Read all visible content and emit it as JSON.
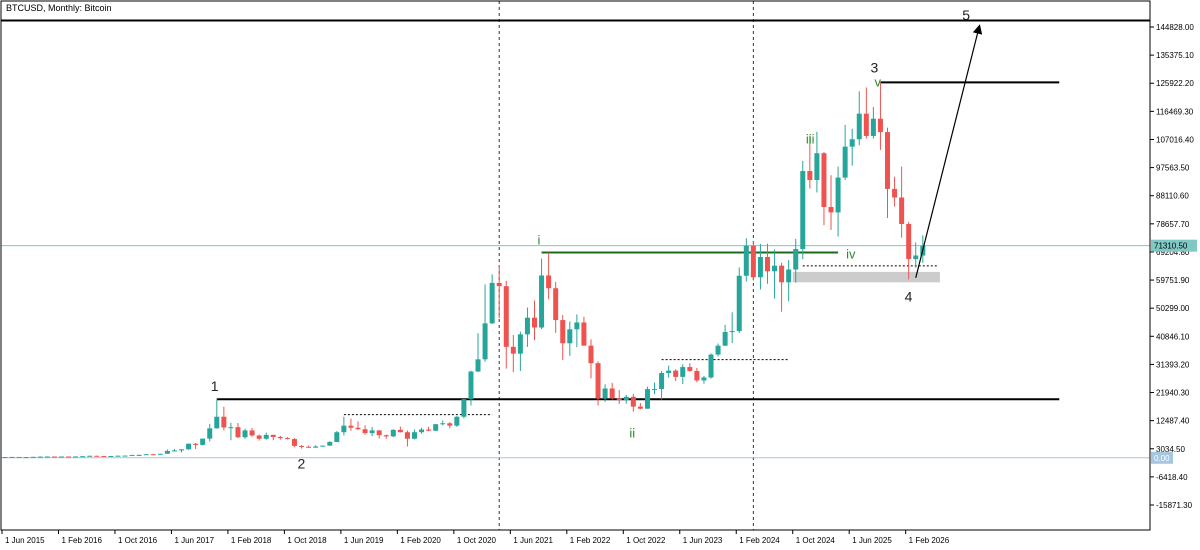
{
  "chart_data": {
    "type": "candlestick",
    "title": "BTCUSD, Monthly: Bitcoin",
    "colors": {
      "up": "#26a69a",
      "down": "#ef5350",
      "current_price_line": "#7fc8c3",
      "zero_line": "#a7c7e0",
      "wave_minor": "#2e8b2e",
      "support_box": "#cccccc"
    },
    "x_ticks": [
      "1 Jun 2015",
      "1 Feb 2016",
      "1 Oct 2016",
      "1 Jun 2017",
      "1 Feb 2018",
      "1 Oct 2018",
      "1 Jun 2019",
      "1 Feb 2020",
      "1 Oct 2020",
      "1 Jun 2021",
      "1 Feb 2022",
      "1 Oct 2022",
      "1 Jun 2023",
      "1 Feb 2024",
      "1 Oct 2024",
      "1 Jun 2025",
      "1 Feb 2026"
    ],
    "y_ticks": [
      "144828.00",
      "135375.10",
      "125922.20",
      "116469.30",
      "107016.40",
      "97563.50",
      "88110.60",
      "78657.70",
      "69204.80",
      "59751.90",
      "50299.00",
      "40846.10",
      "31393.20",
      "21940.30",
      "12487.40",
      "3034.50",
      "-6418.40",
      "-15871.30"
    ],
    "y_range": [
      -18000,
      150000
    ],
    "current_price_label": "71310.50",
    "current_price": 71310.5,
    "zero_label": "0.00",
    "candles": [
      {
        "date": "2015-06",
        "o": 230,
        "h": 265,
        "l": 220,
        "c": 264
      },
      {
        "date": "2015-07",
        "o": 264,
        "h": 315,
        "l": 255,
        "c": 285
      },
      {
        "date": "2015-08",
        "o": 285,
        "h": 290,
        "l": 200,
        "c": 230
      },
      {
        "date": "2015-09",
        "o": 230,
        "h": 245,
        "l": 225,
        "c": 236
      },
      {
        "date": "2015-10",
        "o": 236,
        "h": 330,
        "l": 235,
        "c": 315
      },
      {
        "date": "2015-11",
        "o": 315,
        "h": 500,
        "l": 310,
        "c": 377
      },
      {
        "date": "2015-12",
        "o": 377,
        "h": 470,
        "l": 350,
        "c": 430
      },
      {
        "date": "2016-01",
        "o": 430,
        "h": 465,
        "l": 350,
        "c": 370
      },
      {
        "date": "2016-02",
        "o": 370,
        "h": 440,
        "l": 365,
        "c": 437
      },
      {
        "date": "2016-03",
        "o": 437,
        "h": 440,
        "l": 400,
        "c": 416
      },
      {
        "date": "2016-04",
        "o": 416,
        "h": 470,
        "l": 410,
        "c": 448
      },
      {
        "date": "2016-05",
        "o": 448,
        "h": 550,
        "l": 440,
        "c": 531
      },
      {
        "date": "2016-06",
        "o": 531,
        "h": 780,
        "l": 525,
        "c": 673
      },
      {
        "date": "2016-07",
        "o": 673,
        "h": 700,
        "l": 610,
        "c": 624
      },
      {
        "date": "2016-08",
        "o": 624,
        "h": 620,
        "l": 480,
        "c": 573
      },
      {
        "date": "2016-09",
        "o": 573,
        "h": 620,
        "l": 570,
        "c": 609
      },
      {
        "date": "2016-10",
        "o": 609,
        "h": 720,
        "l": 605,
        "c": 699
      },
      {
        "date": "2016-11",
        "o": 699,
        "h": 760,
        "l": 690,
        "c": 742
      },
      {
        "date": "2016-12",
        "o": 742,
        "h": 980,
        "l": 740,
        "c": 960
      },
      {
        "date": "2017-01",
        "o": 960,
        "h": 1160,
        "l": 750,
        "c": 970
      },
      {
        "date": "2017-02",
        "o": 970,
        "h": 1200,
        "l": 930,
        "c": 1190
      },
      {
        "date": "2017-03",
        "o": 1190,
        "h": 1300,
        "l": 890,
        "c": 1080
      },
      {
        "date": "2017-04",
        "o": 1080,
        "h": 1360,
        "l": 1070,
        "c": 1350
      },
      {
        "date": "2017-05",
        "o": 1350,
        "h": 2790,
        "l": 1340,
        "c": 2300
      },
      {
        "date": "2017-06",
        "o": 2300,
        "h": 3000,
        "l": 2100,
        "c": 2500
      },
      {
        "date": "2017-07",
        "o": 2500,
        "h": 2900,
        "l": 1800,
        "c": 2860
      },
      {
        "date": "2017-08",
        "o": 2860,
        "h": 4800,
        "l": 2700,
        "c": 4730
      },
      {
        "date": "2017-09",
        "o": 4730,
        "h": 5000,
        "l": 2950,
        "c": 4340
      },
      {
        "date": "2017-10",
        "o": 4340,
        "h": 6450,
        "l": 4120,
        "c": 6450
      },
      {
        "date": "2017-11",
        "o": 6450,
        "h": 11400,
        "l": 5500,
        "c": 9900
      },
      {
        "date": "2017-12",
        "o": 9900,
        "h": 19700,
        "l": 9800,
        "c": 13800
      },
      {
        "date": "2018-01",
        "o": 13800,
        "h": 17200,
        "l": 9200,
        "c": 10200
      },
      {
        "date": "2018-02",
        "o": 10200,
        "h": 11800,
        "l": 5900,
        "c": 10300
      },
      {
        "date": "2018-03",
        "o": 10300,
        "h": 11700,
        "l": 6600,
        "c": 6900
      },
      {
        "date": "2018-04",
        "o": 6900,
        "h": 9800,
        "l": 6400,
        "c": 9200
      },
      {
        "date": "2018-05",
        "o": 9200,
        "h": 10000,
        "l": 7100,
        "c": 7500
      },
      {
        "date": "2018-06",
        "o": 7500,
        "h": 7800,
        "l": 5800,
        "c": 6400
      },
      {
        "date": "2018-07",
        "o": 6400,
        "h": 8500,
        "l": 6100,
        "c": 7700
      },
      {
        "date": "2018-08",
        "o": 7700,
        "h": 7800,
        "l": 5900,
        "c": 7000
      },
      {
        "date": "2018-09",
        "o": 7000,
        "h": 7400,
        "l": 6100,
        "c": 6600
      },
      {
        "date": "2018-10",
        "o": 6600,
        "h": 7000,
        "l": 6200,
        "c": 6300
      },
      {
        "date": "2018-11",
        "o": 6300,
        "h": 6600,
        "l": 3600,
        "c": 4000
      },
      {
        "date": "2018-12",
        "o": 4000,
        "h": 4300,
        "l": 3100,
        "c": 3700
      },
      {
        "date": "2019-01",
        "o": 3700,
        "h": 4100,
        "l": 3400,
        "c": 3400
      },
      {
        "date": "2019-02",
        "o": 3400,
        "h": 4200,
        "l": 3400,
        "c": 3800
      },
      {
        "date": "2019-03",
        "o": 3800,
        "h": 4100,
        "l": 3700,
        "c": 4100
      },
      {
        "date": "2019-04",
        "o": 4100,
        "h": 5600,
        "l": 4000,
        "c": 5300
      },
      {
        "date": "2019-05",
        "o": 5300,
        "h": 9000,
        "l": 5300,
        "c": 8600
      },
      {
        "date": "2019-06",
        "o": 8600,
        "h": 13800,
        "l": 7500,
        "c": 10800
      },
      {
        "date": "2019-07",
        "o": 10800,
        "h": 13200,
        "l": 9100,
        "c": 10100
      },
      {
        "date": "2019-08",
        "o": 10100,
        "h": 12300,
        "l": 9400,
        "c": 9600
      },
      {
        "date": "2019-09",
        "o": 9600,
        "h": 10900,
        "l": 7700,
        "c": 8300
      },
      {
        "date": "2019-10",
        "o": 8300,
        "h": 10400,
        "l": 7300,
        "c": 9200
      },
      {
        "date": "2019-11",
        "o": 9200,
        "h": 9300,
        "l": 6500,
        "c": 7600
      },
      {
        "date": "2019-12",
        "o": 7600,
        "h": 7800,
        "l": 6400,
        "c": 7200
      },
      {
        "date": "2020-01",
        "o": 7200,
        "h": 9600,
        "l": 6900,
        "c": 9400
      },
      {
        "date": "2020-02",
        "o": 9400,
        "h": 10500,
        "l": 8500,
        "c": 8600
      },
      {
        "date": "2020-03",
        "o": 8600,
        "h": 9200,
        "l": 3800,
        "c": 6400
      },
      {
        "date": "2020-04",
        "o": 6400,
        "h": 9500,
        "l": 6200,
        "c": 8600
      },
      {
        "date": "2020-05",
        "o": 8600,
        "h": 10100,
        "l": 8100,
        "c": 9500
      },
      {
        "date": "2020-06",
        "o": 9500,
        "h": 10400,
        "l": 8900,
        "c": 9100
      },
      {
        "date": "2020-07",
        "o": 9100,
        "h": 11400,
        "l": 9000,
        "c": 11300
      },
      {
        "date": "2020-08",
        "o": 11300,
        "h": 12500,
        "l": 10900,
        "c": 11600
      },
      {
        "date": "2020-09",
        "o": 11600,
        "h": 12000,
        "l": 9900,
        "c": 10800
      },
      {
        "date": "2020-10",
        "o": 10800,
        "h": 14000,
        "l": 10400,
        "c": 13800
      },
      {
        "date": "2020-11",
        "o": 13800,
        "h": 19800,
        "l": 13200,
        "c": 19700
      },
      {
        "date": "2020-12",
        "o": 19700,
        "h": 29300,
        "l": 17600,
        "c": 29000
      },
      {
        "date": "2021-01",
        "o": 29000,
        "h": 41900,
        "l": 28800,
        "c": 33100
      },
      {
        "date": "2021-02",
        "o": 33100,
        "h": 58300,
        "l": 32300,
        "c": 45200
      },
      {
        "date": "2021-03",
        "o": 45200,
        "h": 61700,
        "l": 45000,
        "c": 58800
      },
      {
        "date": "2021-04",
        "o": 58800,
        "h": 64800,
        "l": 47000,
        "c": 57700
      },
      {
        "date": "2021-05",
        "o": 57700,
        "h": 59500,
        "l": 30000,
        "c": 37300
      },
      {
        "date": "2021-06",
        "o": 37300,
        "h": 41300,
        "l": 28800,
        "c": 35000
      },
      {
        "date": "2021-07",
        "o": 35000,
        "h": 42400,
        "l": 29200,
        "c": 41500
      },
      {
        "date": "2021-08",
        "o": 41500,
        "h": 50500,
        "l": 37300,
        "c": 47100
      },
      {
        "date": "2021-09",
        "o": 47100,
        "h": 52900,
        "l": 39600,
        "c": 43800
      },
      {
        "date": "2021-10",
        "o": 43800,
        "h": 67000,
        "l": 43300,
        "c": 61300
      },
      {
        "date": "2021-11",
        "o": 61300,
        "h": 69000,
        "l": 53300,
        "c": 57000
      },
      {
        "date": "2021-12",
        "o": 57000,
        "h": 59100,
        "l": 42000,
        "c": 46300
      },
      {
        "date": "2022-01",
        "o": 46300,
        "h": 48000,
        "l": 32900,
        "c": 38500
      },
      {
        "date": "2022-02",
        "o": 38500,
        "h": 45800,
        "l": 34300,
        "c": 43200
      },
      {
        "date": "2022-03",
        "o": 43200,
        "h": 48200,
        "l": 37200,
        "c": 45500
      },
      {
        "date": "2022-04",
        "o": 45500,
        "h": 47400,
        "l": 37700,
        "c": 37700
      },
      {
        "date": "2022-05",
        "o": 37700,
        "h": 39800,
        "l": 26700,
        "c": 31800
      },
      {
        "date": "2022-06",
        "o": 31800,
        "h": 32400,
        "l": 17600,
        "c": 19900
      },
      {
        "date": "2022-07",
        "o": 19900,
        "h": 24700,
        "l": 18800,
        "c": 23300
      },
      {
        "date": "2022-08",
        "o": 23300,
        "h": 25200,
        "l": 19600,
        "c": 20000
      },
      {
        "date": "2022-09",
        "o": 20000,
        "h": 22800,
        "l": 18100,
        "c": 19400
      },
      {
        "date": "2022-10",
        "o": 19400,
        "h": 21100,
        "l": 18200,
        "c": 20500
      },
      {
        "date": "2022-11",
        "o": 20500,
        "h": 21500,
        "l": 15500,
        "c": 17200
      },
      {
        "date": "2022-12",
        "o": 17200,
        "h": 18400,
        "l": 16300,
        "c": 16500
      },
      {
        "date": "2023-01",
        "o": 16500,
        "h": 23900,
        "l": 16500,
        "c": 23100
      },
      {
        "date": "2023-02",
        "o": 23100,
        "h": 25300,
        "l": 21400,
        "c": 23100
      },
      {
        "date": "2023-03",
        "o": 23100,
        "h": 29200,
        "l": 19600,
        "c": 28500
      },
      {
        "date": "2023-04",
        "o": 28500,
        "h": 31000,
        "l": 26900,
        "c": 29300
      },
      {
        "date": "2023-05",
        "o": 29300,
        "h": 29800,
        "l": 25800,
        "c": 27200
      },
      {
        "date": "2023-06",
        "o": 27200,
        "h": 31400,
        "l": 24800,
        "c": 30500
      },
      {
        "date": "2023-07",
        "o": 30500,
        "h": 31800,
        "l": 28900,
        "c": 29200
      },
      {
        "date": "2023-08",
        "o": 29200,
        "h": 30200,
        "l": 25400,
        "c": 26000
      },
      {
        "date": "2023-09",
        "o": 26000,
        "h": 27500,
        "l": 24900,
        "c": 27000
      },
      {
        "date": "2023-10",
        "o": 27000,
        "h": 35100,
        "l": 26600,
        "c": 34700
      },
      {
        "date": "2023-11",
        "o": 34700,
        "h": 38400,
        "l": 34100,
        "c": 37700
      },
      {
        "date": "2023-12",
        "o": 37700,
        "h": 44700,
        "l": 37600,
        "c": 42300
      },
      {
        "date": "2024-01",
        "o": 42300,
        "h": 48900,
        "l": 38600,
        "c": 42600
      },
      {
        "date": "2024-02",
        "o": 42600,
        "h": 64000,
        "l": 41900,
        "c": 61200
      },
      {
        "date": "2024-03",
        "o": 61200,
        "h": 73800,
        "l": 59300,
        "c": 71300
      },
      {
        "date": "2024-04",
        "o": 71300,
        "h": 72800,
        "l": 59600,
        "c": 60700
      },
      {
        "date": "2024-05",
        "o": 60700,
        "h": 71900,
        "l": 56600,
        "c": 67500
      },
      {
        "date": "2024-06",
        "o": 67500,
        "h": 72000,
        "l": 58500,
        "c": 62700
      },
      {
        "date": "2024-07",
        "o": 62700,
        "h": 70000,
        "l": 53500,
        "c": 64600
      },
      {
        "date": "2024-08",
        "o": 64600,
        "h": 65600,
        "l": 49100,
        "c": 59000
      },
      {
        "date": "2024-09",
        "o": 59000,
        "h": 66500,
        "l": 52600,
        "c": 63300
      },
      {
        "date": "2024-10",
        "o": 63300,
        "h": 73600,
        "l": 58900,
        "c": 70200
      },
      {
        "date": "2024-11",
        "o": 70200,
        "h": 99800,
        "l": 66800,
        "c": 96400
      },
      {
        "date": "2024-12",
        "o": 96400,
        "h": 108300,
        "l": 90500,
        "c": 93400
      },
      {
        "date": "2025-01",
        "o": 93400,
        "h": 109600,
        "l": 89200,
        "c": 102400
      },
      {
        "date": "2025-02",
        "o": 102400,
        "h": 102800,
        "l": 78200,
        "c": 84300
      },
      {
        "date": "2025-03",
        "o": 84300,
        "h": 95000,
        "l": 76600,
        "c": 82500
      },
      {
        "date": "2025-04",
        "o": 82500,
        "h": 97900,
        "l": 74400,
        "c": 94200
      },
      {
        "date": "2025-05",
        "o": 94200,
        "h": 111900,
        "l": 93400,
        "c": 104600
      },
      {
        "date": "2025-06",
        "o": 104600,
        "h": 110600,
        "l": 98200,
        "c": 107100
      },
      {
        "date": "2025-07",
        "o": 107100,
        "h": 123200,
        "l": 105100,
        "c": 115700
      },
      {
        "date": "2025-08",
        "o": 115700,
        "h": 124500,
        "l": 107300,
        "c": 108200
      },
      {
        "date": "2025-09",
        "o": 108200,
        "h": 117900,
        "l": 107300,
        "c": 114000
      },
      {
        "date": "2025-10",
        "o": 114000,
        "h": 126200,
        "l": 103500,
        "c": 109500
      },
      {
        "date": "2025-11",
        "o": 109500,
        "h": 111000,
        "l": 80600,
        "c": 90400
      },
      {
        "date": "2025-12",
        "o": 90400,
        "h": 94500,
        "l": 84500,
        "c": 87500
      },
      {
        "date": "2026-01",
        "o": 87500,
        "h": 97900,
        "l": 74000,
        "c": 78600
      },
      {
        "date": "2026-02",
        "o": 78600,
        "h": 79300,
        "l": 60000,
        "c": 66800
      },
      {
        "date": "2026-03",
        "o": 66800,
        "h": 72400,
        "l": 63900,
        "c": 68000
      },
      {
        "date": "2026-04",
        "o": 68000,
        "h": 74800,
        "l": 65500,
        "c": 71310.5
      }
    ],
    "annotations": {
      "wave_1": {
        "label": "1",
        "date": "2017-12",
        "price": 19700
      },
      "wave_2": {
        "label": "2",
        "date": "2018-12",
        "price": 3100
      },
      "wave_3": {
        "label": "3",
        "date": "2025-10",
        "price": 126200
      },
      "wave_4": {
        "label": "4",
        "date": "2026-02",
        "price": 60000
      },
      "wave_5": {
        "label": "5",
        "date": "2026-11",
        "price": 150000
      },
      "wave_i": {
        "label": "i",
        "date": "2021-10",
        "price": 69000
      },
      "wave_ii": {
        "label": "ii",
        "date": "2022-11",
        "price": 15500
      },
      "wave_iii": {
        "label": "iii",
        "date": "2024-12",
        "price": 108300
      },
      "wave_iv": {
        "label": "iv",
        "date": "2025-04",
        "price": 69000
      },
      "wave_v": {
        "label": "v",
        "date": "2025-10",
        "price": 126200
      }
    },
    "levels": [
      {
        "price": 147000,
        "from": "2015-06",
        "to": "2026-12",
        "style": "solid"
      },
      {
        "price": 126200,
        "from": "2025-10",
        "to": "2026-12",
        "style": "solid"
      },
      {
        "price": 19700,
        "from": "2017-12",
        "to": "2026-12",
        "style": "solid"
      },
      {
        "price": 69000,
        "from": "2021-10",
        "to": "2025-04",
        "style": "green"
      },
      {
        "price": 64500,
        "from": "2024-11",
        "to": "2026-06",
        "style": "dotted"
      },
      {
        "price": 33000,
        "from": "2023-03",
        "to": "2024-09",
        "style": "dotted"
      },
      {
        "price": 14500,
        "from": "2019-06",
        "to": "2021-03",
        "style": "dotted"
      }
    ],
    "vertical_markers": [
      "2021-04",
      "2024-04"
    ],
    "support_zone": {
      "from": "2024-10",
      "to": "2026-06",
      "low": 59000,
      "high": 62500
    },
    "projection": {
      "from_date": "2026-03",
      "from_price": 60500,
      "to_date": "2026-12",
      "to_price": 147000
    }
  }
}
